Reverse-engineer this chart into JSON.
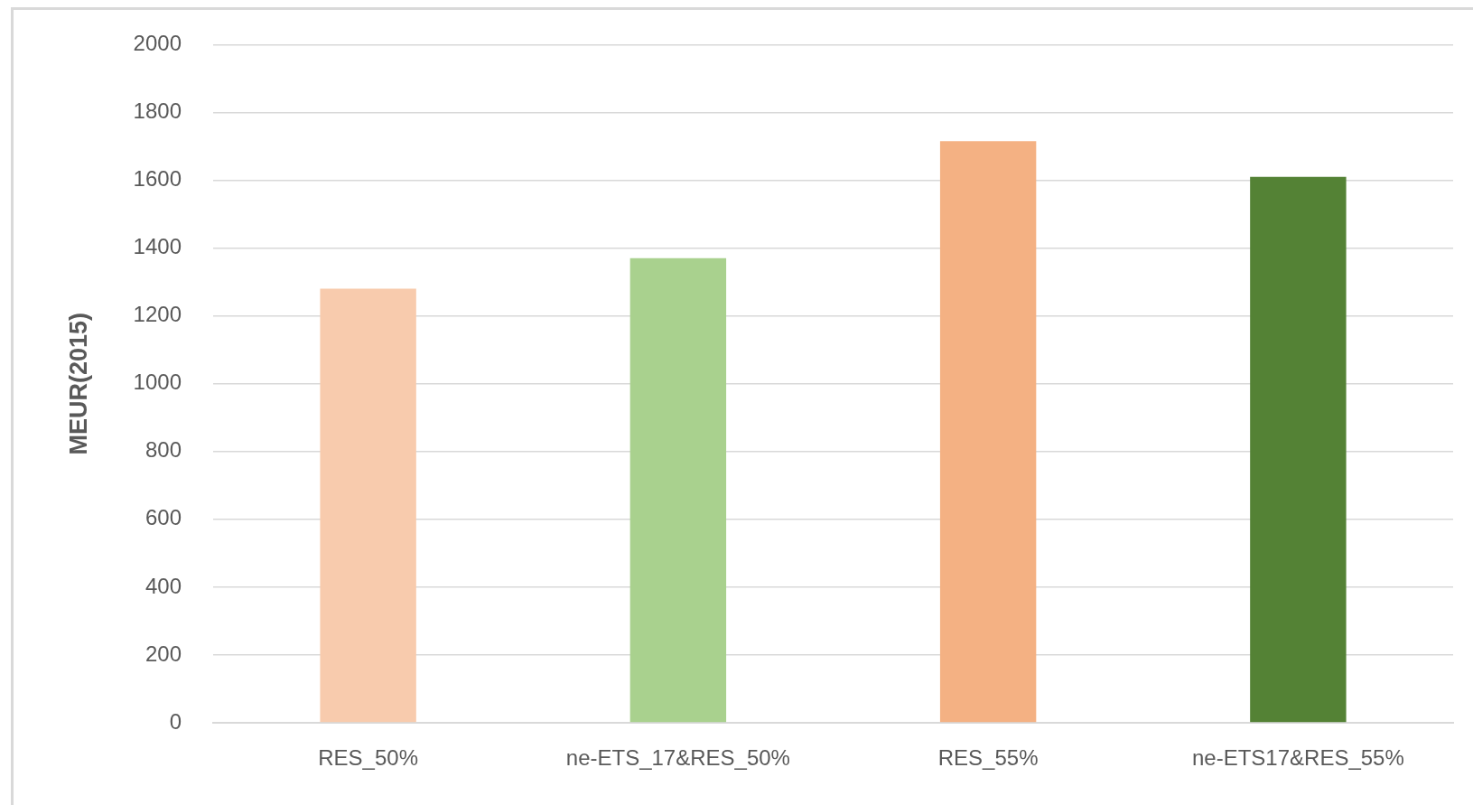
{
  "chart_data": {
    "type": "bar",
    "ylabel": "MEUR(2015)",
    "categories": [
      "RES_50%",
      "ne-ETS_17&RES_50%",
      "RES_55%",
      "ne-ETS17&RES_55%"
    ],
    "values": [
      1280,
      1370,
      1715,
      1610
    ],
    "colors": [
      "#f8cbad",
      "#a9d18e",
      "#f4b183",
      "#548235"
    ],
    "ylim": [
      0,
      2000
    ],
    "yticks": [
      0,
      200,
      400,
      600,
      800,
      1000,
      1200,
      1400,
      1600,
      1800,
      2000
    ],
    "grid": "y"
  }
}
